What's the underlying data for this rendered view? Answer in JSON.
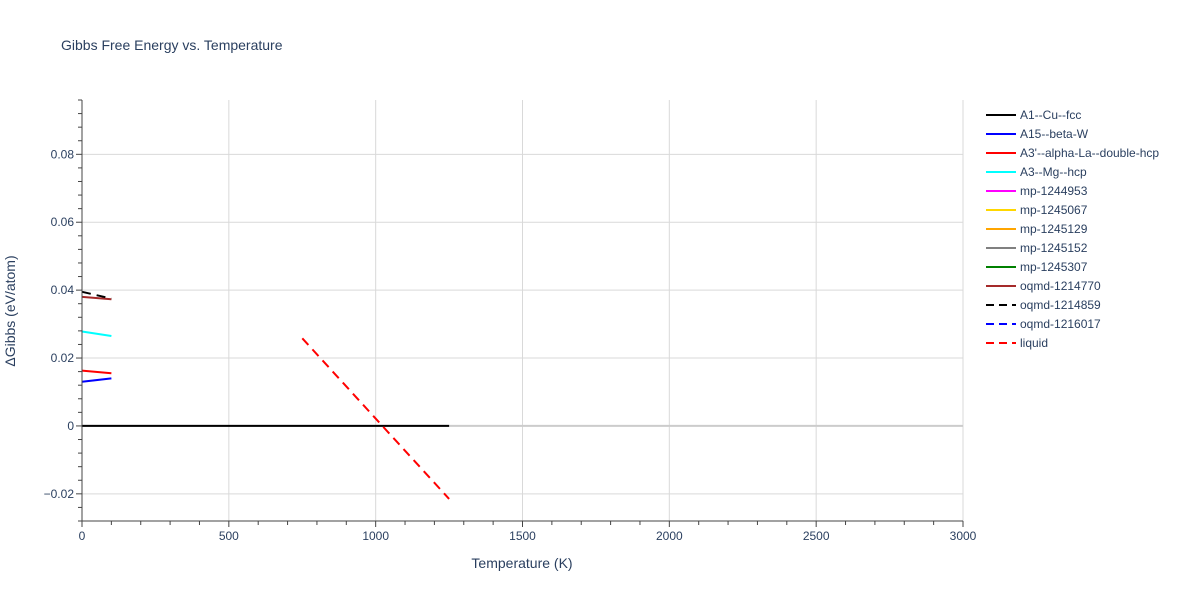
{
  "chart_data": {
    "type": "line",
    "title": "Gibbs Free Energy vs. Temperature",
    "xlabel": "Temperature (K)",
    "ylabel": "ΔGibbs (eV/atom)",
    "xlim": [
      0,
      3000
    ],
    "ylim": [
      -0.028,
      0.096
    ],
    "x_ticks": [
      0,
      500,
      1000,
      1500,
      2000,
      2500,
      3000
    ],
    "x_tick_labels": [
      "0",
      "500",
      "1000",
      "1500",
      "2000",
      "2500",
      "3000"
    ],
    "y_ticks": [
      -0.02,
      0,
      0.02,
      0.04,
      0.06,
      0.08
    ],
    "y_tick_labels": [
      "−0.02",
      "0",
      "0.02",
      "0.04",
      "0.06",
      "0.08"
    ],
    "grid": true,
    "legend_position": "right",
    "series": [
      {
        "name": "A1--Cu--fcc",
        "color": "#000000",
        "dash": "solid",
        "x": [
          0,
          1250
        ],
        "y": [
          0,
          0
        ]
      },
      {
        "name": "A15--beta-W",
        "color": "#0000ff",
        "dash": "solid",
        "x": [
          0,
          100
        ],
        "y": [
          0.013,
          0.014
        ]
      },
      {
        "name": "A3'--alpha-La--double-hcp",
        "color": "#ff0000",
        "dash": "solid",
        "x": [
          0,
          100
        ],
        "y": [
          0.0163,
          0.0155
        ]
      },
      {
        "name": "A3--Mg--hcp",
        "color": "#00ffff",
        "dash": "solid",
        "x": [
          0,
          100
        ],
        "y": [
          0.0278,
          0.0265
        ]
      },
      {
        "name": "mp-1244953",
        "color": "#ff00ff",
        "dash": "solid",
        "x": [],
        "y": []
      },
      {
        "name": "mp-1245067",
        "color": "#ffd700",
        "dash": "solid",
        "x": [],
        "y": []
      },
      {
        "name": "mp-1245129",
        "color": "#ffa500",
        "dash": "solid",
        "x": [],
        "y": []
      },
      {
        "name": "mp-1245152",
        "color": "#808080",
        "dash": "solid",
        "x": [],
        "y": []
      },
      {
        "name": "mp-1245307",
        "color": "#008000",
        "dash": "solid",
        "x": [],
        "y": []
      },
      {
        "name": "oqmd-1214770",
        "color": "#a52a2a",
        "dash": "solid",
        "x": [
          0,
          100
        ],
        "y": [
          0.038,
          0.0373
        ]
      },
      {
        "name": "oqmd-1214859",
        "color": "#000000",
        "dash": "dash",
        "x": [
          0,
          100
        ],
        "y": [
          0.0395,
          0.0375
        ]
      },
      {
        "name": "oqmd-1216017",
        "color": "#0000ff",
        "dash": "dash",
        "x": [],
        "y": []
      },
      {
        "name": "liquid",
        "color": "#ff0000",
        "dash": "dash",
        "x": [
          750,
          1250
        ],
        "y": [
          0.0258,
          -0.0215
        ]
      }
    ]
  },
  "colors": {
    "text": "#2a3f5f",
    "grid": "#d9d9d9",
    "zero_line": "#cccccc"
  }
}
